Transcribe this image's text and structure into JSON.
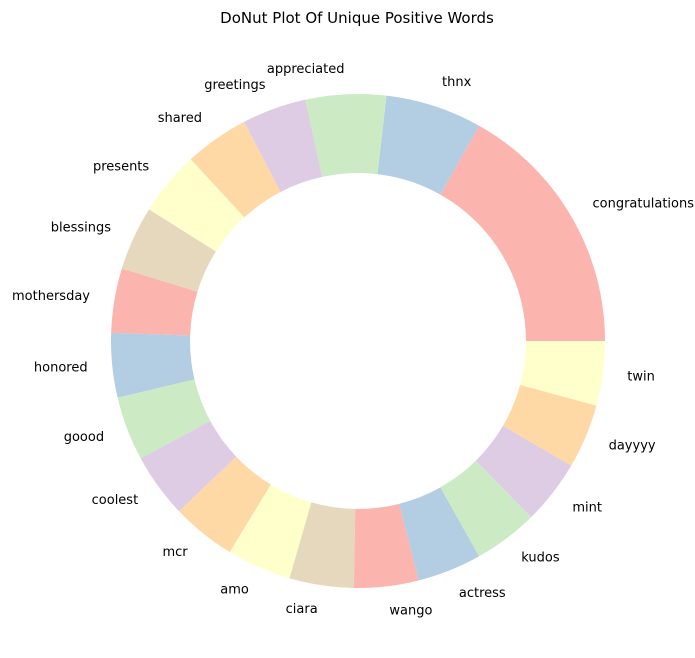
{
  "chart_data": {
    "type": "pie",
    "style": "donut",
    "title": "DoNut Plot Of Unique Positive Words",
    "start_angle_deg": 0,
    "direction": "counterclockwise",
    "hole_ratio": 0.68,
    "categories": [
      "congratulations",
      "thnx",
      "appreciated",
      "greetings",
      "shared",
      "presents",
      "blessings",
      "mothersday",
      "honored",
      "goood",
      "coolest",
      "mcr",
      "amo",
      "ciara",
      "wango",
      "actress",
      "kudos",
      "mint",
      "dayyyy",
      "twin"
    ],
    "values": [
      16,
      6,
      5,
      4,
      4,
      4,
      4,
      4,
      4,
      4,
      4,
      4,
      4,
      4,
      4,
      4,
      4,
      4,
      4,
      4
    ],
    "colors": [
      "#fbb4ae",
      "#b3cde3",
      "#ccebc5",
      "#decbe4",
      "#fed9a6",
      "#ffffcc",
      "#e5d8bd",
      "#fbb4ae",
      "#b3cde3",
      "#ccebc5",
      "#decbe4",
      "#fed9a6",
      "#ffffcc",
      "#e5d8bd",
      "#fbb4ae",
      "#b3cde3",
      "#ccebc5",
      "#decbe4",
      "#fed9a6",
      "#ffffcc"
    ]
  }
}
